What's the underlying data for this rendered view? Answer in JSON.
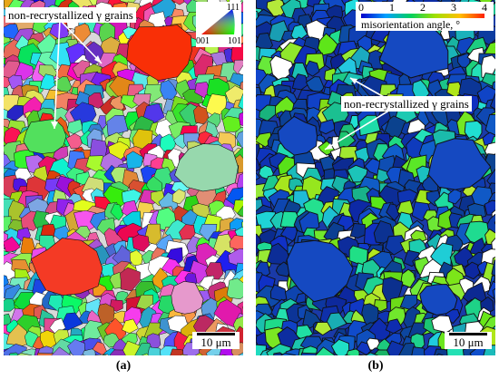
{
  "panel_a": {
    "annotation": "non-recrystallized γ grains",
    "scale_bar": "10 μm",
    "caption": "(a)",
    "ipf_key": {
      "top": "111",
      "bottom_left": "001",
      "bottom_right": "101"
    }
  },
  "panel_b": {
    "annotation": "non-recrystallized γ grains",
    "scale_bar": "10 μm",
    "caption": "(b)",
    "colorbar": {
      "ticks": [
        "0",
        "1",
        "2",
        "3",
        "4"
      ],
      "label": "misorientation angle, °",
      "colors": [
        "#0000cc",
        "#00a0ff",
        "#00d060",
        "#a0e000",
        "#ffc000",
        "#ff2000"
      ]
    }
  }
}
